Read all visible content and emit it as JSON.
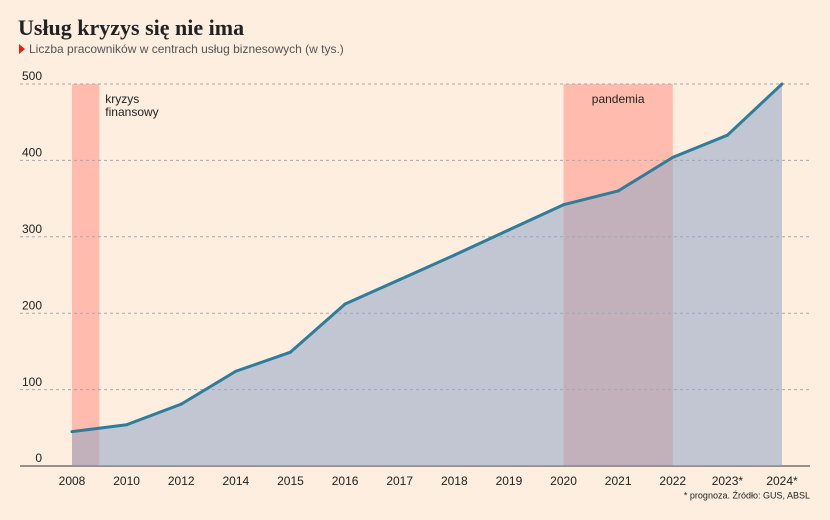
{
  "chart_data": {
    "type": "area",
    "title": "Usług kryzys się nie ima",
    "subtitle": "Liczba pracowników w centrach usług biznesowych (w tys.)",
    "footnote": "* prognoza. Źródło: GUS, ABSL",
    "categories": [
      "2008",
      "2010",
      "2012",
      "2014",
      "2015",
      "2016",
      "2017",
      "2018",
      "2019",
      "2020",
      "2021",
      "2022",
      "2023*",
      "2024*"
    ],
    "values": [
      45,
      54,
      81,
      124,
      149,
      212,
      244,
      276,
      309,
      342,
      360,
      404,
      433,
      500
    ],
    "color": "#2f7c9b",
    "fill": "#8fa6c6",
    "ylim": [
      0,
      500
    ],
    "yticks": [
      0,
      100,
      200,
      300,
      400,
      500
    ],
    "grid": true,
    "shaded_regions": [
      {
        "label": "kryzys finansowy",
        "from": 0,
        "to": 0.5,
        "color": "#ffbcae"
      },
      {
        "label": "pandemia",
        "from": 9,
        "to": 11,
        "color": "#ffbcae"
      }
    ]
  }
}
